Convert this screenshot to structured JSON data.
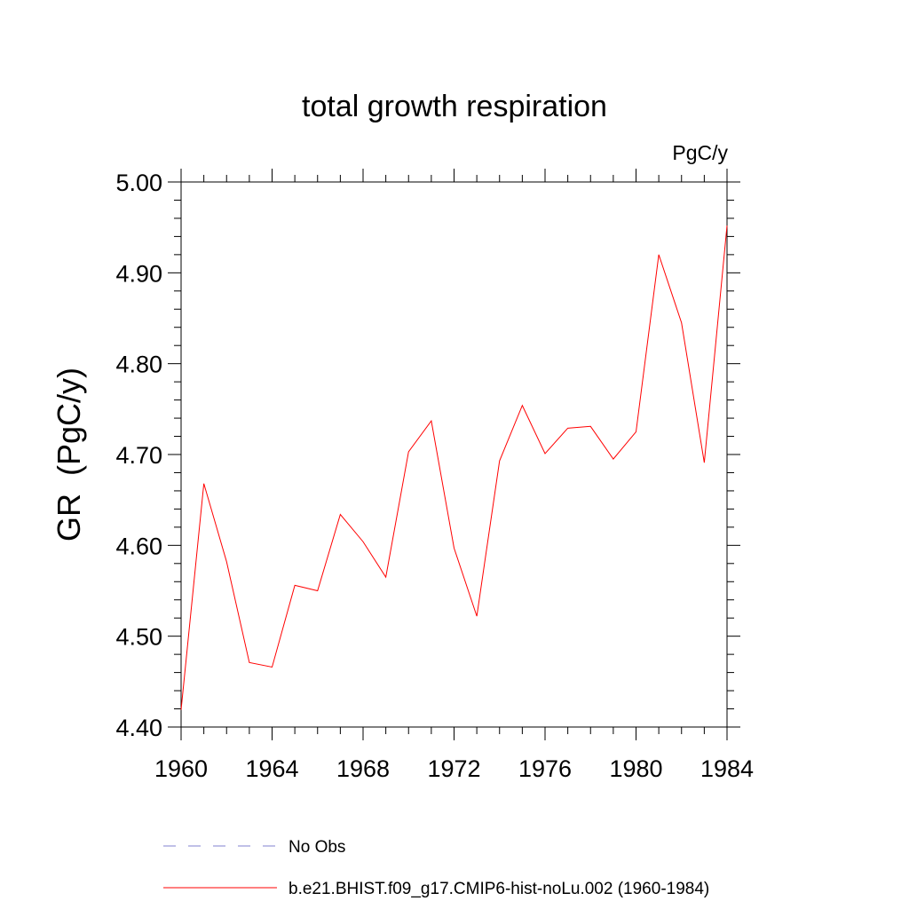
{
  "chart_data": {
    "type": "line",
    "title": "total growth respiration",
    "units_label": "PgC/y",
    "ylabel": "GR  (PgC/y)",
    "xlabel": "",
    "xlim": [
      1960,
      1984
    ],
    "ylim": [
      4.4,
      5.0
    ],
    "x_ticks": [
      "1960",
      "1964",
      "1968",
      "1972",
      "1976",
      "1980",
      "1984"
    ],
    "y_ticks": [
      "4.40",
      "4.50",
      "4.60",
      "4.70",
      "4.80",
      "4.90",
      "5.00"
    ],
    "grid": false,
    "legend_position": "bottom",
    "series": [
      {
        "name": "No Obs",
        "color": "#8080d0",
        "style": "dashed",
        "x": [],
        "values": []
      },
      {
        "name": "b.e21.BHIST.f09_g17.CMIP6-hist-noLu.002 (1960-1984)",
        "color": "#ff0000",
        "style": "solid",
        "x": [
          1960,
          1961,
          1962,
          1963,
          1964,
          1965,
          1966,
          1967,
          1968,
          1969,
          1970,
          1971,
          1972,
          1973,
          1974,
          1975,
          1976,
          1977,
          1978,
          1979,
          1980,
          1981,
          1982,
          1983,
          1984
        ],
        "values": [
          4.419,
          4.668,
          4.582,
          4.471,
          4.466,
          4.556,
          4.55,
          4.634,
          4.604,
          4.565,
          4.703,
          4.737,
          4.597,
          4.522,
          4.693,
          4.754,
          4.701,
          4.729,
          4.731,
          4.695,
          4.725,
          4.92,
          4.845,
          4.691,
          4.952
        ]
      }
    ]
  }
}
